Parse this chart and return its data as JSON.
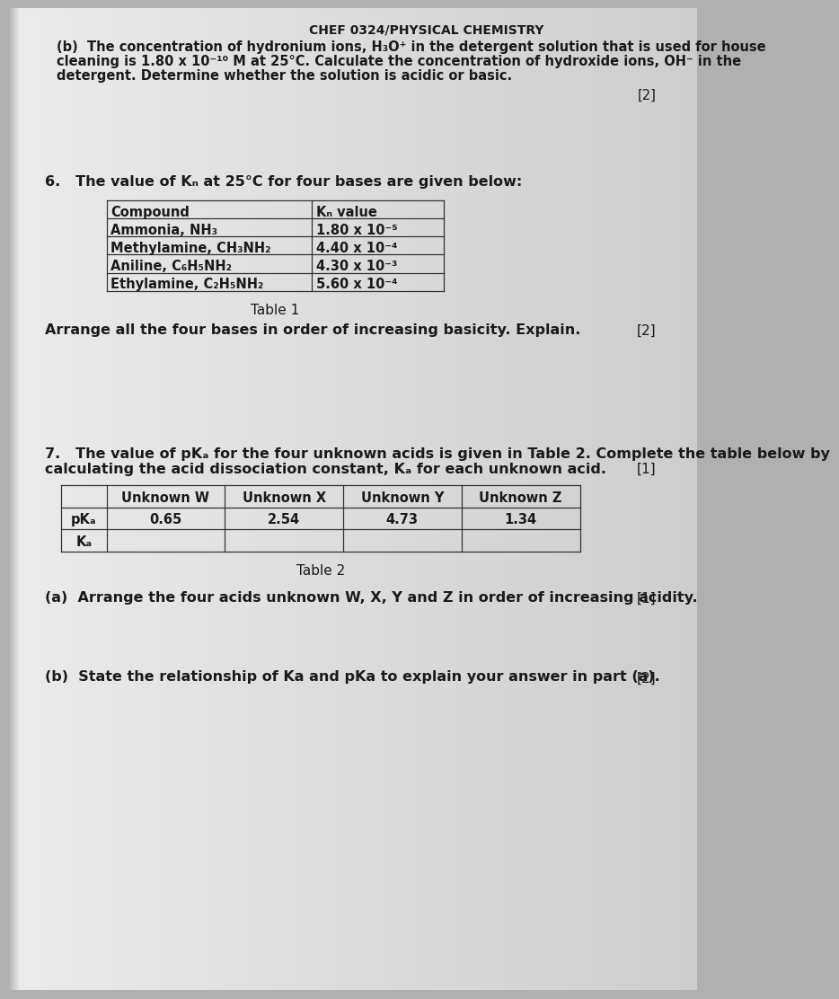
{
  "bg_color": "#b0b0b0",
  "page_left_color": "#e8e8e8",
  "page_right_color": "#c8c8c8",
  "header_text": "CHEF 0324/PHYSICAL CHEMISTRY",
  "part_b_line1": "(b)  The concentration of hydronium ions, H₃O⁺ in the detergent solution that is used for house",
  "part_b_line2": "cleaning is 1.80 x 10⁻¹⁰ M at 25°C. Calculate the concentration of hydroxide ions, OH⁻ in the",
  "part_b_line3": "detergent. Determine whether the solution is acidic or basic.",
  "part_b_marks": "[2]",
  "q6_text": "6.   The value of Kₙ at 25°C for four bases are given below:",
  "table1_col1_header": "Compound",
  "table1_col2_header": "Kₙ value",
  "table1_row1": [
    "Ammonia, NH₃",
    "1.80 x 10⁻⁵"
  ],
  "table1_row2": [
    "Methylamine, CH₃NH₂",
    "4.40 x 10⁻⁴"
  ],
  "table1_row3": [
    "Aniline, C₆H₅NH₂",
    "4.30 x 10⁻³"
  ],
  "table1_row4": [
    "Ethylamine, C₂H₅NH₂",
    "5.60 x 10⁻⁴"
  ],
  "table1_caption": "Table 1",
  "arrange_text": "Arrange all the four bases in order of increasing basicity. Explain.",
  "arrange_marks": "[2]",
  "q7_line1": "7.   The value of pKₐ for the four unknown acids is given in Table 2. Complete the table below by",
  "q7_line2": "calculating the acid dissociation constant, Kₐ for each unknown acid.",
  "q7_marks": "[1]",
  "t2_h0": "",
  "t2_h1": "Unknown W",
  "t2_h2": "Unknown X",
  "t2_h3": "Unknown Y",
  "t2_h4": "Unknown Z",
  "t2_r1_label": "pKₐ",
  "t2_r1_vals": [
    "0.65",
    "2.54",
    "4.73",
    "1.34"
  ],
  "t2_r2_label": "Kₐ",
  "table2_caption": "Table 2",
  "part_a_text": "(a)  Arrange the four acids unknown W, X, Y and Z in order of increasing acidity.",
  "part_a_marks": "[1]",
  "part_b2_text": "(b)  State the relationship of Ka and pKa to explain your answer in part (a).",
  "part_b2_marks": "[2]",
  "text_color": "#1a1a1a",
  "line_color": "#333333"
}
